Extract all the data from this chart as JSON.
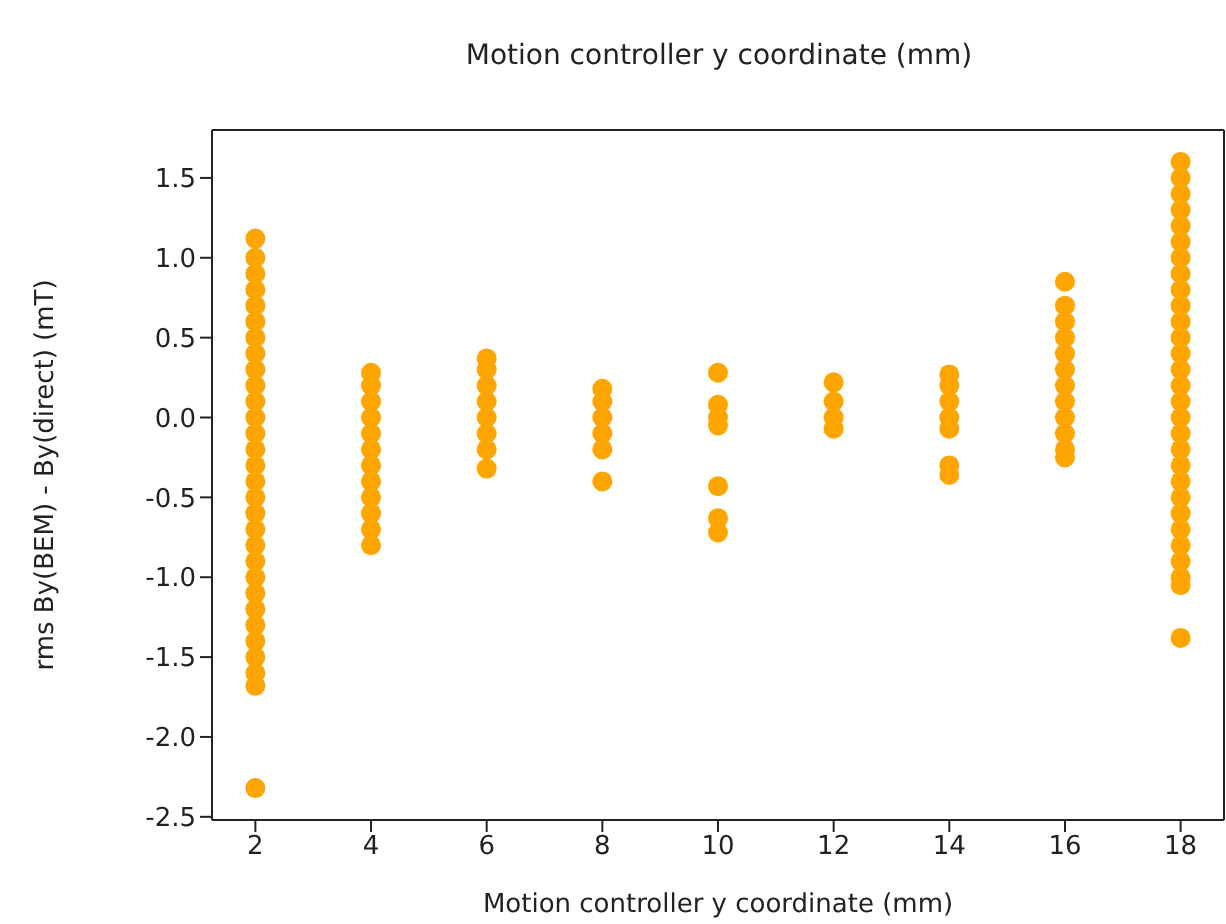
{
  "chart_data": {
    "type": "scatter",
    "title": "Motion controller y coordinate (mm)",
    "xlabel": "Motion controller y coordinate (mm)",
    "ylabel": "rms By(BEM) - By(direct) (mT)",
    "marker": "circle",
    "grid": false,
    "xlim": [
      1.25,
      18.75
    ],
    "xticks": [
      2,
      4,
      6,
      8,
      10,
      12,
      14,
      16,
      18
    ],
    "ylim": [
      -2.52,
      1.8
    ],
    "yticks": [
      -2.5,
      {
        "value": -2,
        "label": "-2.0"
      },
      -1.5,
      {
        "value": -1,
        "label": "-1.0"
      },
      -0.5,
      {
        "value": 0,
        "label": "0.0"
      },
      0.5,
      {
        "value": 1,
        "label": "1.0"
      },
      1.5
    ],
    "series": [
      {
        "color": "#ffa500",
        "x": [
          2,
          2,
          2,
          2,
          2,
          2,
          2,
          2,
          2,
          2,
          2,
          2,
          2,
          2,
          2,
          2,
          2,
          2,
          2,
          2,
          2,
          2,
          2,
          2,
          2,
          2,
          2,
          2,
          2,
          2,
          4,
          4,
          4,
          4,
          4,
          4,
          4,
          4,
          4,
          4,
          4,
          4,
          6,
          6,
          6,
          6,
          6,
          6,
          6,
          6,
          8,
          8,
          8,
          8,
          8,
          8,
          10,
          10,
          10,
          10,
          10,
          10,
          10,
          12,
          12,
          12,
          12,
          14,
          14,
          14,
          14,
          14,
          14,
          14,
          16,
          16,
          16,
          16,
          16,
          16,
          16,
          16,
          16,
          16,
          16,
          16,
          18,
          18,
          18,
          18,
          18,
          18,
          18,
          18,
          18,
          18,
          18,
          18,
          18,
          18,
          18,
          18,
          18,
          18,
          18,
          18,
          18,
          18,
          18,
          18,
          18,
          18,
          18,
          18,
          18
        ],
        "values": [
          1.12,
          1.0,
          0.9,
          0.8,
          0.7,
          0.6,
          0.5,
          0.4,
          0.3,
          0.2,
          0.1,
          0.0,
          -0.1,
          -0.2,
          -0.3,
          -0.4,
          -0.5,
          -0.6,
          -0.7,
          -0.8,
          -0.9,
          -1.0,
          -1.1,
          -1.2,
          -1.3,
          -1.4,
          -1.5,
          -1.6,
          -1.68,
          -2.32,
          0.28,
          0.2,
          0.1,
          0.0,
          -0.1,
          -0.2,
          -0.3,
          -0.4,
          -0.5,
          -0.6,
          -0.7,
          -0.8,
          0.37,
          0.3,
          0.2,
          0.1,
          0.0,
          -0.1,
          -0.2,
          -0.32,
          0.18,
          0.1,
          0.0,
          -0.1,
          -0.2,
          -0.4,
          0.28,
          0.08,
          0.0,
          -0.05,
          -0.43,
          -0.63,
          -0.72,
          0.22,
          0.1,
          0.0,
          -0.07,
          0.27,
          0.2,
          0.1,
          0.0,
          -0.07,
          -0.3,
          -0.36,
          0.85,
          0.7,
          0.6,
          0.5,
          0.4,
          0.3,
          0.2,
          0.1,
          0.0,
          -0.1,
          -0.2,
          -0.25,
          1.6,
          1.5,
          1.4,
          1.3,
          1.2,
          1.1,
          1.0,
          0.9,
          0.8,
          0.7,
          0.6,
          0.5,
          0.4,
          0.3,
          0.2,
          0.1,
          0.0,
          -0.1,
          -0.2,
          -0.3,
          -0.4,
          -0.5,
          -0.6,
          -0.7,
          -0.8,
          -0.9,
          -1.0,
          -1.05,
          -1.38
        ]
      }
    ]
  }
}
